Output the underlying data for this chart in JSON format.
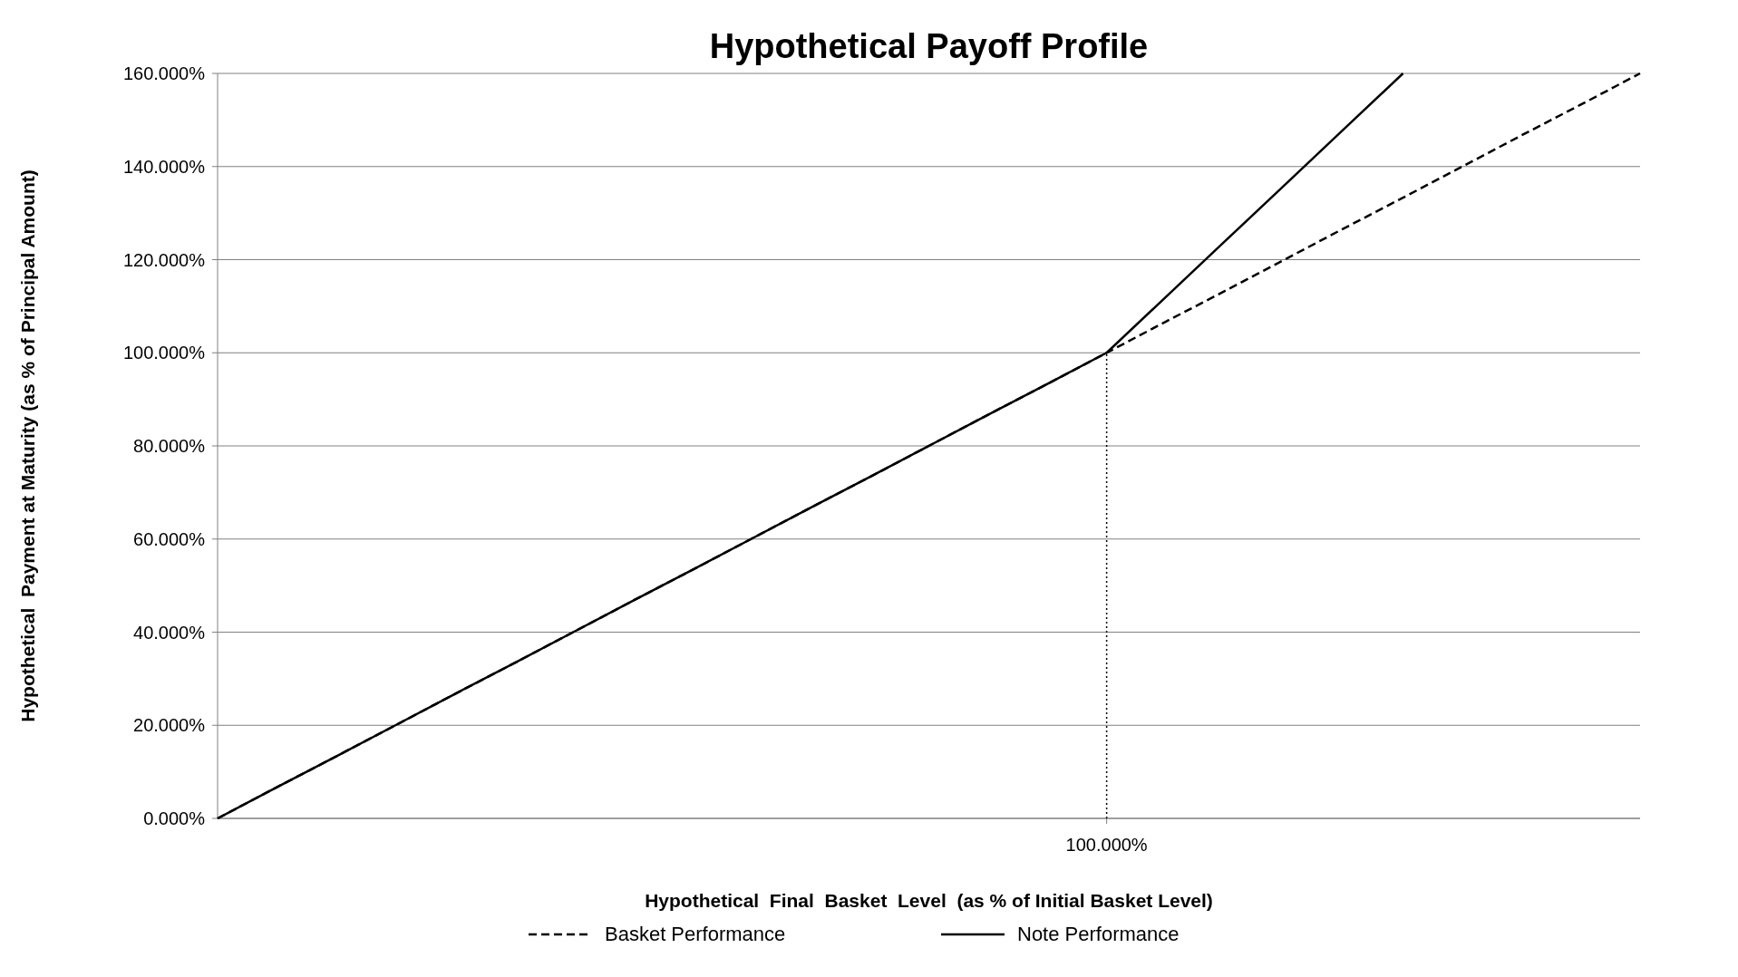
{
  "chart_data": {
    "type": "line",
    "title": "Hypothetical  Payoff Profile",
    "xlabel": "Hypothetical  Final  Basket  Level  (as % of Initial Basket Level)",
    "ylabel": "Hypothetical  Payment at Maturity (as % of Principal Amount)",
    "categories": [
      null,
      null,
      null,
      null,
      null,
      null,
      null,
      null,
      null,
      null,
      null,
      null,
      null,
      null,
      null,
      "100.000%",
      null,
      null,
      null,
      null,
      null,
      null,
      null,
      null,
      null
    ],
    "series": [
      {
        "name": "Basket Performance",
        "color": "#000000",
        "line_style": "dashed",
        "values": [
          0,
          6.7,
          13.3,
          20,
          26.7,
          33.3,
          40,
          46.7,
          53.3,
          60,
          66.7,
          73.3,
          80,
          86.7,
          93.3,
          100,
          106.7,
          113.3,
          120,
          126.7,
          133.3,
          140,
          146.7,
          153.3,
          160
        ]
      },
      {
        "name": "Note Performance",
        "color": "#000000",
        "line_style": "solid",
        "values": [
          0,
          6.7,
          13.3,
          20,
          26.7,
          33.3,
          40,
          46.7,
          53.3,
          60,
          66.7,
          73.3,
          80,
          86.7,
          93.3,
          100,
          112,
          124,
          136,
          148,
          160,
          null,
          null,
          null,
          null
        ]
      }
    ],
    "ref_lines": [
      {
        "axis": "x",
        "value": "100.000%",
        "color": "#000000",
        "line_style": "dotted"
      }
    ],
    "ylim": [
      0,
      160
    ],
    "yticks": [
      {
        "value": 0,
        "label": "0.000%"
      },
      {
        "value": 20,
        "label": "20.000%"
      },
      {
        "value": 40,
        "label": "40.000%"
      },
      {
        "value": 60,
        "label": "60.000%"
      },
      {
        "value": 80,
        "label": "80.000%"
      },
      {
        "value": 100,
        "label": "100.000%"
      },
      {
        "value": 120,
        "label": "120.000%"
      },
      {
        "value": 140,
        "label": "140.000%"
      },
      {
        "value": 160,
        "label": "160.000%"
      }
    ],
    "grid": "y",
    "legend": "bottom"
  }
}
